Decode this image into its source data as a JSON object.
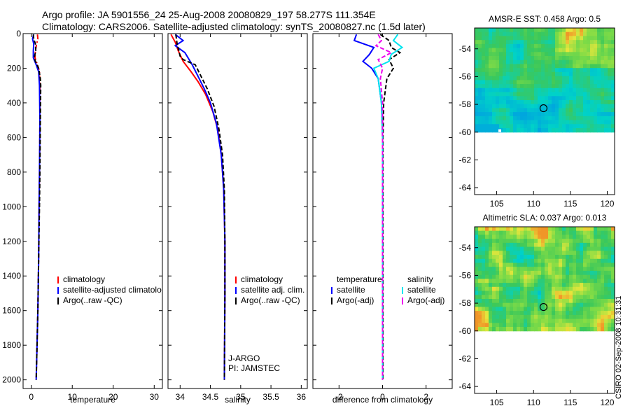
{
  "header": {
    "line1": "Argo profile: JA 5901556_24 25-Aug-2008 20080829_197 58.277S 111.354E",
    "line2": "Climatology: CARS2006. Satellite-adjusted climatology: synTS_20080827.nc (1.5d later)"
  },
  "credit": "CSIRO 02-Sep-2008 10:31:31",
  "colors": {
    "climatology": "#ff0000",
    "satellite": "#0000ff",
    "argo": "#000000",
    "sal_satellite": "#00e5ee",
    "sal_argo": "#ee00ee"
  },
  "chart_data": [
    {
      "type": "line",
      "panel": "temperature",
      "xlabel": "temperature",
      "ylabel": "",
      "xlim": [
        -2,
        32
      ],
      "ylim": [
        2050,
        0
      ],
      "y_reversed": true,
      "xticks": [
        0,
        10,
        20,
        30
      ],
      "yticks": [
        0,
        200,
        400,
        600,
        800,
        1000,
        1200,
        1400,
        1600,
        1800,
        2000
      ],
      "legend": [
        "climatology",
        "satellite-adjusted climatolo",
        "Argo(..raw -QC)"
      ],
      "series": [
        {
          "name": "climatology",
          "color": "#ff0000",
          "dash": "dashdot",
          "points": [
            [
              1.5,
              5
            ],
            [
              1.6,
              30
            ],
            [
              1.3,
              60
            ],
            [
              1.0,
              100
            ],
            [
              0.9,
              140
            ],
            [
              1.5,
              180
            ],
            [
              2.0,
              220
            ],
            [
              2.1,
              300
            ],
            [
              2.1,
              500
            ],
            [
              2.0,
              800
            ],
            [
              1.9,
              1000
            ],
            [
              1.8,
              1300
            ],
            [
              1.6,
              1600
            ],
            [
              1.4,
              1800
            ],
            [
              1.2,
              2000
            ]
          ]
        },
        {
          "name": "satellite-adjusted climatolo",
          "color": "#0000ff",
          "dash": "solid",
          "points": [
            [
              0.6,
              5
            ],
            [
              0.3,
              30
            ],
            [
              0.6,
              60
            ],
            [
              0.5,
              100
            ],
            [
              0.5,
              140
            ],
            [
              1.2,
              180
            ],
            [
              1.8,
              220
            ],
            [
              2.0,
              300
            ],
            [
              2.1,
              500
            ],
            [
              2.0,
              800
            ],
            [
              1.9,
              1000
            ],
            [
              1.8,
              1300
            ],
            [
              1.6,
              1600
            ],
            [
              1.4,
              1800
            ],
            [
              1.2,
              2000
            ]
          ]
        },
        {
          "name": "Argo(..raw -QC)",
          "color": "#000000",
          "dash": "dashed",
          "points": [
            [
              0.5,
              5
            ],
            [
              0.6,
              30
            ],
            [
              1.0,
              60
            ],
            [
              1.1,
              100
            ],
            [
              0.7,
              140
            ],
            [
              1.0,
              160
            ],
            [
              1.8,
              200
            ],
            [
              2.2,
              260
            ],
            [
              2.3,
              300
            ],
            [
              2.2,
              500
            ],
            [
              2.1,
              800
            ],
            [
              2.0,
              1000
            ],
            [
              1.8,
              1300
            ],
            [
              1.6,
              1600
            ],
            [
              1.4,
              1800
            ],
            [
              1.2,
              2000
            ]
          ]
        }
      ]
    },
    {
      "type": "line",
      "panel": "salinity",
      "xlabel": "salinity",
      "ylabel": "",
      "xlim": [
        33.8,
        36.1
      ],
      "ylim": [
        2050,
        0
      ],
      "y_reversed": true,
      "xticks": [
        34,
        34.5,
        35,
        35.5,
        36
      ],
      "legend": [
        "climatology",
        "satellite adj. clim.",
        "Argo(..raw -QC)"
      ],
      "annotations": [
        "J-ARGO",
        "PI: JAMSTEC"
      ],
      "series": [
        {
          "name": "climatology",
          "color": "#ff0000",
          "dash": "solid",
          "points": [
            [
              33.85,
              5
            ],
            [
              33.92,
              50
            ],
            [
              33.97,
              100
            ],
            [
              34.05,
              160
            ],
            [
              34.18,
              220
            ],
            [
              34.3,
              280
            ],
            [
              34.42,
              350
            ],
            [
              34.54,
              450
            ],
            [
              34.62,
              550
            ],
            [
              34.68,
              700
            ],
            [
              34.72,
              900
            ],
            [
              34.74,
              1200
            ],
            [
              34.74,
              1500
            ],
            [
              34.73,
              2000
            ]
          ]
        },
        {
          "name": "satellite adj. clim.",
          "color": "#0000ff",
          "dash": "solid",
          "points": [
            [
              33.92,
              5
            ],
            [
              34.05,
              40
            ],
            [
              33.92,
              70
            ],
            [
              34.08,
              110
            ],
            [
              34.2,
              180
            ],
            [
              34.3,
              250
            ],
            [
              34.4,
              320
            ],
            [
              34.5,
              400
            ],
            [
              34.6,
              520
            ],
            [
              34.68,
              700
            ],
            [
              34.72,
              900
            ],
            [
              34.74,
              1200
            ],
            [
              34.74,
              1500
            ],
            [
              34.73,
              2000
            ]
          ]
        },
        {
          "name": "Argo(..raw -QC)",
          "color": "#000000",
          "dash": "dashed",
          "points": [
            [
              33.93,
              5
            ],
            [
              33.95,
              60
            ],
            [
              33.98,
              100
            ],
            [
              34.0,
              130
            ],
            [
              34.05,
              150
            ],
            [
              34.25,
              180
            ],
            [
              34.35,
              250
            ],
            [
              34.45,
              320
            ],
            [
              34.56,
              420
            ],
            [
              34.64,
              550
            ],
            [
              34.7,
              700
            ],
            [
              34.73,
              900
            ],
            [
              34.74,
              1200
            ],
            [
              34.74,
              1500
            ],
            [
              34.73,
              2000
            ]
          ]
        }
      ]
    },
    {
      "type": "line",
      "panel": "difference",
      "xlabel": "difference from climatology",
      "ylabel": "",
      "xlim": [
        -3.2,
        3.2
      ],
      "ylim": [
        2050,
        0
      ],
      "y_reversed": true,
      "xticks": [
        -2,
        0,
        2
      ],
      "legend": [
        "temperature",
        "satellite",
        "Argo(-adj)",
        "salinity",
        "satellite",
        "Argo(-adj)"
      ],
      "series": [
        {
          "name": "temperature satellite",
          "color": "#0000ff",
          "dash": "solid",
          "points": [
            [
              -1.2,
              5
            ],
            [
              -1.3,
              40
            ],
            [
              -0.4,
              80
            ],
            [
              -0.6,
              120
            ],
            [
              -0.9,
              160
            ],
            [
              -0.5,
              200
            ],
            [
              -0.2,
              260
            ],
            [
              -0.05,
              400
            ],
            [
              0,
              600
            ],
            [
              0,
              1000
            ],
            [
              0,
              1500
            ],
            [
              0,
              2000
            ]
          ]
        },
        {
          "name": "temperature Argo(-adj)",
          "color": "#000000",
          "dash": "dashed",
          "points": [
            [
              -0.1,
              5
            ],
            [
              0.3,
              40
            ],
            [
              0.4,
              80
            ],
            [
              0.8,
              110
            ],
            [
              0.3,
              150
            ],
            [
              0.5,
              200
            ],
            [
              0.2,
              260
            ],
            [
              0.05,
              400
            ],
            [
              0.02,
              600
            ],
            [
              0.02,
              1000
            ],
            [
              0.02,
              1500
            ],
            [
              0.02,
              2000
            ]
          ]
        },
        {
          "name": "salinity satellite",
          "color": "#00e5ee",
          "dash": "solid",
          "points": [
            [
              0.7,
              5
            ],
            [
              0.5,
              40
            ],
            [
              0.9,
              80
            ],
            [
              0.4,
              120
            ],
            [
              0.3,
              160
            ],
            [
              -0.4,
              200
            ],
            [
              -0.2,
              260
            ],
            [
              -0.05,
              400
            ],
            [
              0,
              600
            ],
            [
              0,
              1000
            ],
            [
              0,
              1500
            ],
            [
              0,
              2000
            ]
          ]
        },
        {
          "name": "salinity Argo(-adj)",
          "color": "#ee00ee",
          "dash": "dashed",
          "points": [
            [
              -0.2,
              5
            ],
            [
              -0.05,
              40
            ],
            [
              -0.3,
              70
            ],
            [
              0.4,
              110
            ],
            [
              -0.2,
              150
            ],
            [
              0.0,
              200
            ],
            [
              -0.1,
              260
            ],
            [
              0.0,
              400
            ],
            [
              0,
              600
            ],
            [
              0,
              1000
            ],
            [
              0,
              1500
            ],
            [
              0,
              2000
            ]
          ]
        }
      ]
    },
    {
      "type": "heatmap",
      "panel": "AMSR-E SST",
      "title": "AMSR-E SST: 0.458 Argo: 0.5",
      "xlim": [
        102,
        121
      ],
      "ylim": [
        -64.5,
        -52.5
      ],
      "xticks": [
        105,
        110,
        115,
        120
      ],
      "yticks": [
        -54,
        -56,
        -58,
        -60,
        -62,
        -64
      ],
      "data_lat_range": [
        -60,
        -52.5
      ],
      "argo_position": {
        "lon": 111.354,
        "lat": -58.277
      }
    },
    {
      "type": "heatmap",
      "panel": "Altimetric SLA",
      "title": "Altimetric SLA: 0.037 Argo: 0.013",
      "xlim": [
        102,
        121
      ],
      "ylim": [
        -64.5,
        -52.5
      ],
      "xticks": [
        105,
        110,
        115,
        120
      ],
      "yticks": [
        -54,
        -56,
        -58,
        -60,
        -62,
        -64
      ],
      "data_lat_range": [
        -60,
        -52.5
      ],
      "argo_position": {
        "lon": 111.354,
        "lat": -58.277
      }
    }
  ]
}
